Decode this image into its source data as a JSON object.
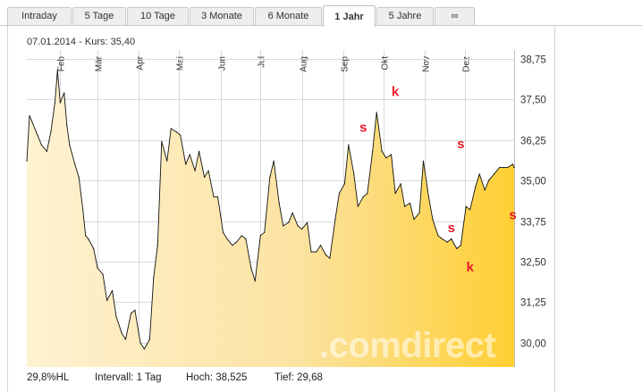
{
  "tabs": [
    {
      "label": "Intraday",
      "active": false
    },
    {
      "label": "5 Tage",
      "active": false
    },
    {
      "label": "10 Tage",
      "active": false
    },
    {
      "label": "3 Monate",
      "active": false
    },
    {
      "label": "6 Monate",
      "active": false
    },
    {
      "label": "1 Jahr",
      "active": true
    },
    {
      "label": "5 Jahre",
      "active": false
    },
    {
      "label": "∞",
      "active": false
    }
  ],
  "info": {
    "date": "07.01.2014",
    "price_text": "Kurs: 35,40"
  },
  "watermark": ".comdirect",
  "footer": {
    "hl": "29,8%HL",
    "intervall": "Intervall: 1 Tag",
    "hoch": "Hoch:  38,525",
    "tief": "Tief:   29,68"
  },
  "colors": {
    "line": "#111111",
    "area_left": "#fff2d2",
    "area_right": "#ffcf33",
    "marker": "#e8192c",
    "grid": "#d9d9d9"
  },
  "chart_data": {
    "type": "area",
    "title": "",
    "xlabel": "",
    "ylabel": "",
    "ylim": [
      29.1,
      39.2
    ],
    "grid": true,
    "month_labels": [
      "Feb",
      "Mär",
      "Apr",
      "Mai",
      "Jun",
      "Jul",
      "Aug",
      "Sep",
      "Okt",
      "Nov",
      "Dez"
    ],
    "y_ticks": [
      "38,75",
      "37,50",
      "36,25",
      "35,00",
      "33,75",
      "32,50",
      "31,25",
      "30,00"
    ],
    "x_range": [
      "2013-01-07",
      "2014-01-07"
    ],
    "x": [
      "2013-01-07",
      "2013-01-09",
      "2013-01-11",
      "2013-01-15",
      "2013-01-18",
      "2013-01-22",
      "2013-01-25",
      "2013-01-28",
      "2013-01-30",
      "2013-02-01",
      "2013-02-04",
      "2013-02-06",
      "2013-02-08",
      "2013-02-12",
      "2013-02-15",
      "2013-02-18",
      "2013-02-20",
      "2013-02-22",
      "2013-02-26",
      "2013-03-01",
      "2013-03-05",
      "2013-03-08",
      "2013-03-12",
      "2013-03-15",
      "2013-03-19",
      "2013-03-22",
      "2013-03-26",
      "2013-03-29",
      "2013-04-02",
      "2013-04-05",
      "2013-04-09",
      "2013-04-12",
      "2013-04-15",
      "2013-04-18",
      "2013-04-22",
      "2013-04-25",
      "2013-04-29",
      "2013-05-02",
      "2013-05-06",
      "2013-05-09",
      "2013-05-13",
      "2013-05-16",
      "2013-05-20",
      "2013-05-23",
      "2013-05-27",
      "2013-05-30",
      "2013-06-03",
      "2013-06-06",
      "2013-06-10",
      "2013-06-13",
      "2013-06-17",
      "2013-06-20",
      "2013-06-24",
      "2013-06-27",
      "2013-07-01",
      "2013-07-04",
      "2013-07-08",
      "2013-07-11",
      "2013-07-15",
      "2013-07-18",
      "2013-07-22",
      "2013-07-25",
      "2013-07-29",
      "2013-08-01",
      "2013-08-05",
      "2013-08-08",
      "2013-08-12",
      "2013-08-15",
      "2013-08-19",
      "2013-08-22",
      "2013-08-26",
      "2013-08-29",
      "2013-09-02",
      "2013-09-05",
      "2013-09-09",
      "2013-09-12",
      "2013-09-16",
      "2013-09-19",
      "2013-09-23",
      "2013-09-26",
      "2013-09-30",
      "2013-10-03",
      "2013-10-07",
      "2013-10-10",
      "2013-10-14",
      "2013-10-17",
      "2013-10-21",
      "2013-10-24",
      "2013-10-28",
      "2013-10-31",
      "2013-11-04",
      "2013-11-07",
      "2013-11-11",
      "2013-11-14",
      "2013-11-18",
      "2013-11-21",
      "2013-11-25",
      "2013-11-28",
      "2013-12-02",
      "2013-12-05",
      "2013-12-09",
      "2013-12-12",
      "2013-12-16",
      "2013-12-19",
      "2013-12-23",
      "2013-12-27",
      "2013-12-30",
      "2014-01-02",
      "2014-01-06",
      "2014-01-07"
    ],
    "y": [
      35.6,
      37.0,
      36.8,
      36.4,
      36.1,
      35.9,
      36.5,
      37.4,
      38.4,
      37.4,
      37.7,
      36.7,
      36.1,
      35.5,
      35.1,
      34.1,
      33.3,
      33.2,
      32.9,
      32.3,
      32.1,
      31.3,
      31.6,
      30.8,
      30.3,
      30.1,
      30.9,
      31.0,
      30.0,
      29.8,
      30.1,
      32.0,
      33.0,
      36.2,
      35.6,
      36.6,
      36.5,
      36.4,
      35.5,
      35.8,
      35.3,
      35.9,
      35.1,
      35.3,
      34.5,
      34.5,
      33.4,
      33.2,
      33.0,
      33.1,
      33.3,
      33.2,
      32.3,
      31.9,
      33.3,
      33.4,
      35.1,
      35.6,
      34.3,
      33.6,
      33.7,
      34.0,
      33.6,
      33.5,
      33.7,
      32.8,
      32.8,
      33.0,
      32.7,
      32.6,
      33.8,
      34.6,
      34.9,
      36.1,
      35.2,
      34.2,
      34.5,
      34.6,
      35.9,
      37.1,
      35.9,
      35.7,
      35.8,
      34.6,
      34.9,
      34.2,
      34.3,
      33.8,
      34.0,
      35.6,
      34.5,
      33.8,
      33.3,
      33.2,
      33.1,
      33.2,
      32.9,
      33.0,
      34.2,
      34.1,
      34.8,
      35.2,
      34.7,
      35.0,
      35.2,
      35.4,
      35.4,
      35.4,
      35.5,
      35.4
    ],
    "markers": [
      {
        "letter": "s",
        "date": "2013-09-16",
        "value": 36.5
      },
      {
        "letter": "k",
        "date": "2013-10-10",
        "value": 37.6
      },
      {
        "letter": "s",
        "date": "2013-11-28",
        "value": 36.0
      },
      {
        "letter": "s",
        "date": "2013-11-21",
        "value": 33.4
      },
      {
        "letter": "k",
        "date": "2013-12-05",
        "value": 32.2
      },
      {
        "letter": "s",
        "date": "2014-01-06",
        "value": 33.8
      }
    ]
  }
}
